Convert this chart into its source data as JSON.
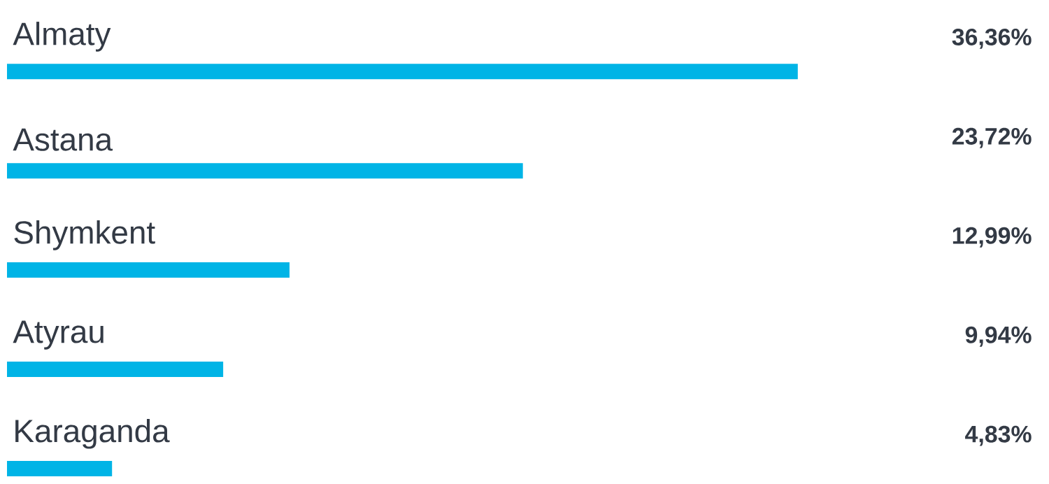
{
  "chart_data": {
    "type": "bar",
    "orientation": "horizontal",
    "categories": [
      "Almaty",
      "Astana",
      "Shymkent",
      "Atyrau",
      "Karaganda"
    ],
    "values": [
      36.36,
      23.72,
      12.99,
      9.94,
      4.83
    ],
    "value_labels": [
      "36,36%",
      "23,72%",
      "12,99%",
      "9,94%",
      "4,83%"
    ],
    "color": "#00b4e6"
  }
}
